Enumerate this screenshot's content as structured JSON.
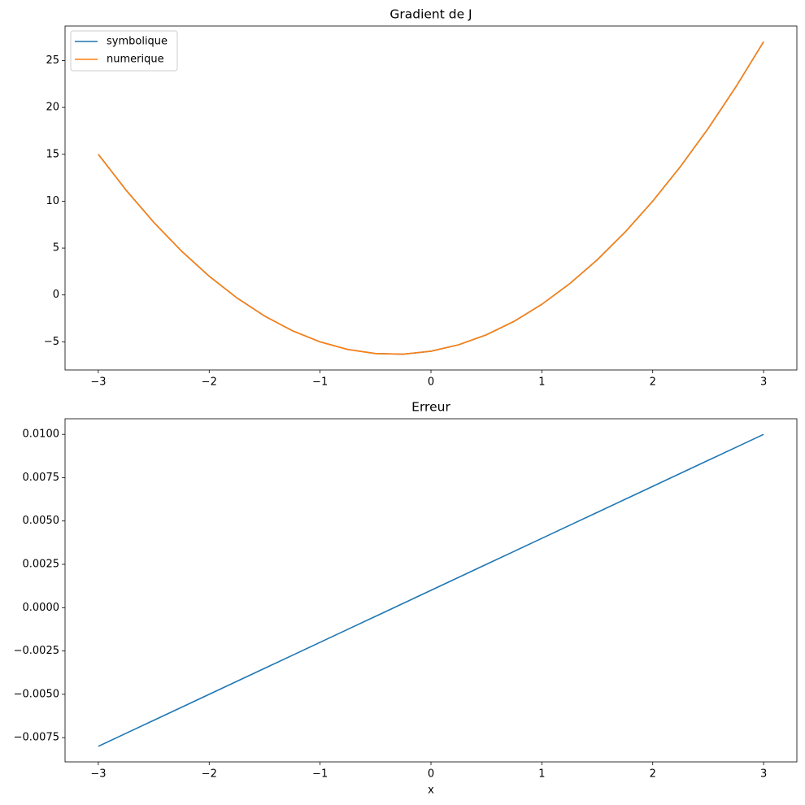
{
  "chart_data": [
    {
      "type": "line",
      "title": "Gradient de J",
      "x": [
        -3,
        -2.75,
        -2.5,
        -2.25,
        -2,
        -1.75,
        -1.5,
        -1.25,
        -1,
        -0.75,
        -0.5,
        -0.25,
        0,
        0.25,
        0.5,
        0.75,
        1,
        1.25,
        1.5,
        1.75,
        2,
        2.25,
        2.5,
        2.75,
        3
      ],
      "series": [
        {
          "name": "symbolique",
          "color": "#1f77b4",
          "values": [
            15,
            11.1875,
            7.75,
            4.6875,
            2,
            -0.3125,
            -2.25,
            -3.8125,
            -5,
            -5.8125,
            -6.25,
            -6.3125,
            -6,
            -5.3125,
            -4.25,
            -2.8125,
            -1,
            1.1875,
            3.75,
            6.6875,
            10,
            13.6875,
            17.75,
            22.1875,
            27
          ]
        },
        {
          "name": "numerique",
          "color": "#ff7f0e",
          "values": [
            14.992,
            11.18025,
            7.7435,
            4.68175,
            1.995,
            -0.31675,
            -2.2535,
            -3.81525,
            -5.002,
            -5.81375,
            -6.2505,
            -6.31225,
            -5.999,
            -5.31075,
            -4.2475,
            -2.80925,
            -0.996,
            1.19225,
            3.7555,
            6.69375,
            10.007,
            13.69525,
            17.7585,
            22.19675,
            27.01
          ]
        }
      ],
      "xlim": [
        -3.3,
        3.3
      ],
      "xticks": [
        {
          "value": -3,
          "label": "−3"
        },
        {
          "value": -2,
          "label": "−2"
        },
        {
          "value": -1,
          "label": "−1"
        },
        0,
        1,
        2,
        3
      ],
      "ylim": [
        -8.0,
        28.68
      ],
      "yticks": [
        {
          "value": -5,
          "label": "−5"
        },
        0,
        5,
        10,
        15,
        20,
        25
      ],
      "legend": "upper left"
    },
    {
      "type": "line",
      "title": "Erreur",
      "xlabel": "x",
      "x": [
        -3,
        -2.75,
        -2.5,
        -2.25,
        -2,
        -1.75,
        -1.5,
        -1.25,
        -1,
        -0.75,
        -0.5,
        -0.25,
        0,
        0.25,
        0.5,
        0.75,
        1,
        1.25,
        1.5,
        1.75,
        2,
        2.25,
        2.5,
        2.75,
        3
      ],
      "series": [
        {
          "color": "#1f77b4",
          "values": [
            -0.008,
            -0.00725,
            -0.0065,
            -0.00575,
            -0.005,
            -0.00425,
            -0.0035,
            -0.00275,
            -0.002,
            -0.00125,
            -0.0005,
            0.00025,
            0.001,
            0.00175,
            0.0025,
            0.00325,
            0.004,
            0.00475,
            0.0055,
            0.00625,
            0.007,
            0.00775,
            0.0085,
            0.00925,
            0.01
          ]
        }
      ],
      "xlim": [
        -3.3,
        3.3
      ],
      "xticks": [
        {
          "value": -3,
          "label": "−3"
        },
        {
          "value": -2,
          "label": "−2"
        },
        {
          "value": -1,
          "label": "−1"
        },
        0,
        1,
        2,
        3
      ],
      "ylim": [
        -0.0089,
        0.0109
      ],
      "yticks": [
        {
          "value": -0.0075,
          "label": "−0.0075"
        },
        {
          "value": -0.005,
          "label": "−0.0050"
        },
        {
          "value": -0.0025,
          "label": "−0.0025"
        },
        {
          "value": 0,
          "label": "0.0000"
        },
        0.0025,
        {
          "value": 0.005,
          "label": "0.0050"
        },
        0.0075,
        {
          "value": 0.01,
          "label": "0.0100"
        }
      ]
    }
  ]
}
